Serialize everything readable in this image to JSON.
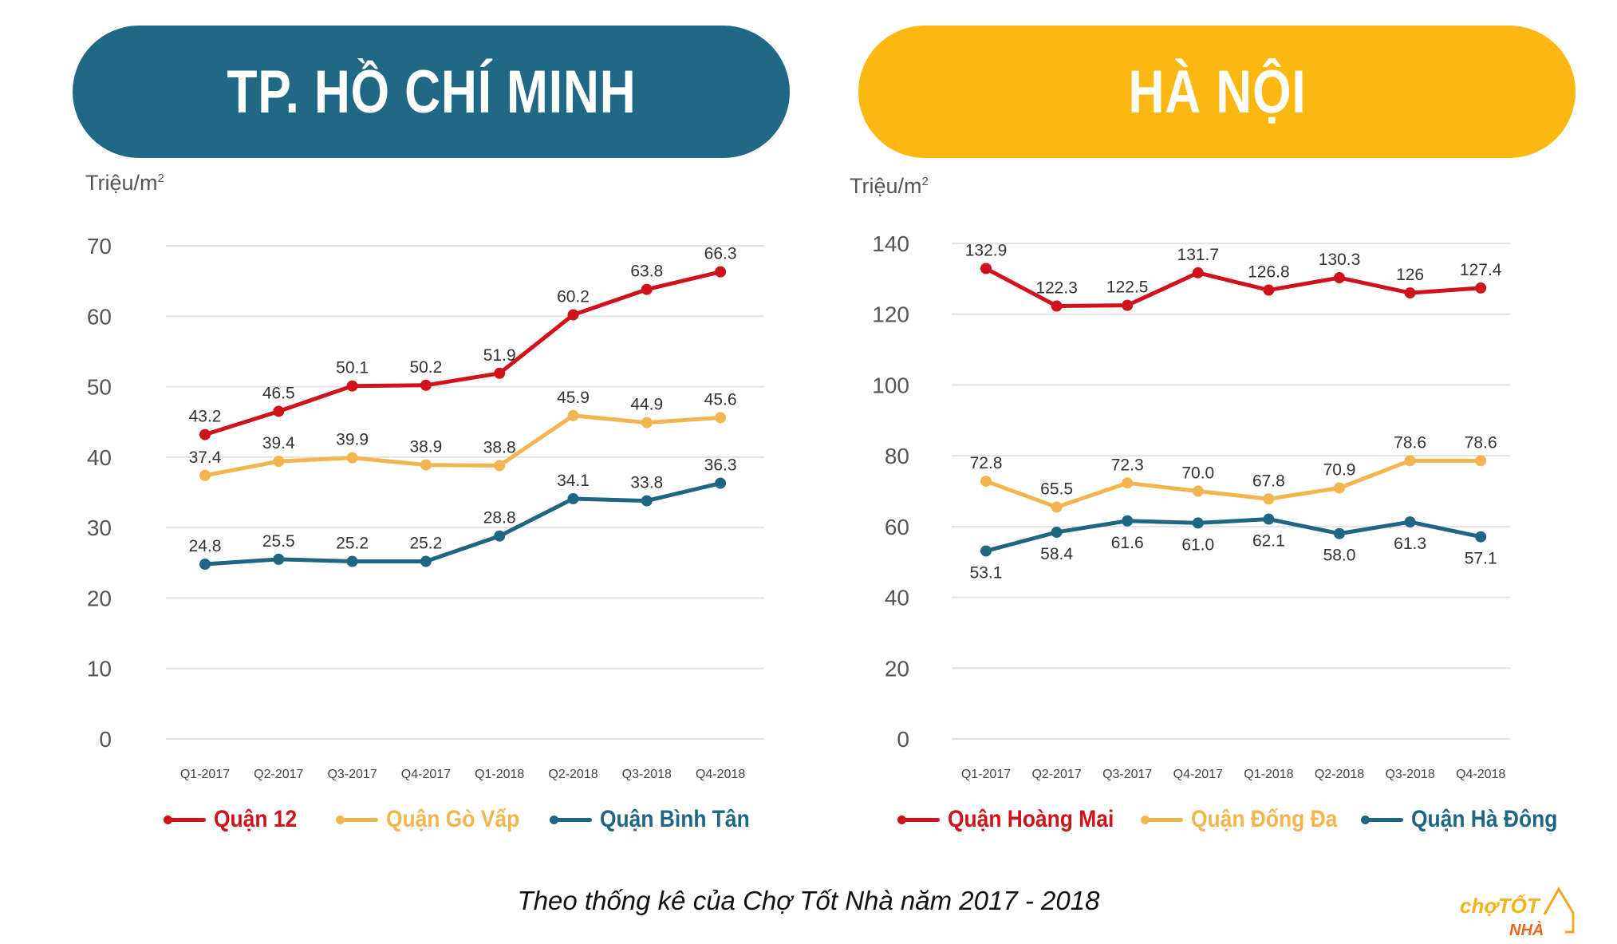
{
  "colors": {
    "hcm_header": "#1f6986",
    "hn_header": "#fbb813",
    "red": "#d0121b",
    "orange": "#f2b550",
    "blue": "#1e6683"
  },
  "footer": "Theo thống kê của Chợ Tốt Nhà năm 2017 - 2018",
  "logo": {
    "text_top": "chợTỐT",
    "text_bottom": "NHÀ"
  },
  "chart_data": [
    {
      "type": "line",
      "title": "TP. HỒ CHÍ MINH",
      "ylabel": "Triệu/m",
      "ylabel_sup": "2",
      "ylim": [
        0,
        70
      ],
      "yticks": [
        0,
        10,
        20,
        30,
        40,
        50,
        60,
        70
      ],
      "grid": true,
      "legend": "bottom",
      "categories": [
        "Q1-2017",
        "Q2-2017",
        "Q3-2017",
        "Q4-2017",
        "Q1-2018",
        "Q2-2018",
        "Q3-2018",
        "Q4-2018"
      ],
      "series": [
        {
          "name": "Quận 12",
          "color": "#d0121b",
          "values": [
            43.2,
            46.5,
            50.1,
            50.2,
            51.9,
            60.2,
            63.8,
            66.3
          ],
          "labels": [
            "43.2",
            "46.5",
            "50.1",
            "50.2",
            "51.9",
            "60.2",
            "63.8",
            "66.3"
          ]
        },
        {
          "name": "Quận Gò Vấp",
          "color": "#f2b550",
          "values": [
            37.4,
            39.4,
            39.9,
            38.9,
            38.8,
            45.9,
            44.9,
            45.6
          ],
          "labels": [
            "37.4",
            "39.4",
            "39.9",
            "38.9",
            "38.8",
            "45.9",
            "44.9",
            "45.6"
          ]
        },
        {
          "name": "Quận Bình Tân",
          "color": "#1e6683",
          "values": [
            24.8,
            25.5,
            25.2,
            25.2,
            28.8,
            34.1,
            33.8,
            36.3
          ],
          "labels": [
            "24.8",
            "25.5",
            "25.2",
            "25.2",
            "28.8",
            "34.1",
            "33.8",
            "36.3"
          ]
        }
      ]
    },
    {
      "type": "line",
      "title": "HÀ NỘI",
      "ylabel": "Triệu/m",
      "ylabel_sup": "2",
      "ylim": [
        0,
        140
      ],
      "yticks": [
        0,
        20,
        40,
        60,
        80,
        100,
        120,
        140
      ],
      "grid": true,
      "legend": "bottom",
      "categories": [
        "Q1-2017",
        "Q2-2017",
        "Q3-2017",
        "Q4-2017",
        "Q1-2018",
        "Q2-2018",
        "Q3-2018",
        "Q4-2018"
      ],
      "series": [
        {
          "name": "Quận Hoàng Mai",
          "color": "#d0121b",
          "values": [
            132.9,
            122.3,
            122.5,
            131.7,
            126.8,
            130.3,
            126,
            127.4
          ],
          "labels": [
            "132.9",
            "122.3",
            "122.5",
            "131.7",
            "126.8",
            "130.3",
            "126",
            "127.4"
          ]
        },
        {
          "name": "Quận Đống Đa",
          "color": "#f2b550",
          "values": [
            72.8,
            65.5,
            72.3,
            70.0,
            67.8,
            70.9,
            78.6,
            78.6
          ],
          "labels": [
            "72.8",
            "65.5",
            "72.3",
            "70.0",
            "67.8",
            "70.9",
            "78.6",
            "78.6"
          ]
        },
        {
          "name": "Quận Hà Đông",
          "color": "#1e6683",
          "values": [
            53.1,
            58.4,
            61.6,
            61.0,
            62.1,
            58.0,
            61.3,
            57.1
          ],
          "labels": [
            "53.1",
            "58.4",
            "61.6",
            "61.0",
            "62.1",
            "58.0",
            "61.3",
            "57.1"
          ]
        }
      ]
    }
  ]
}
